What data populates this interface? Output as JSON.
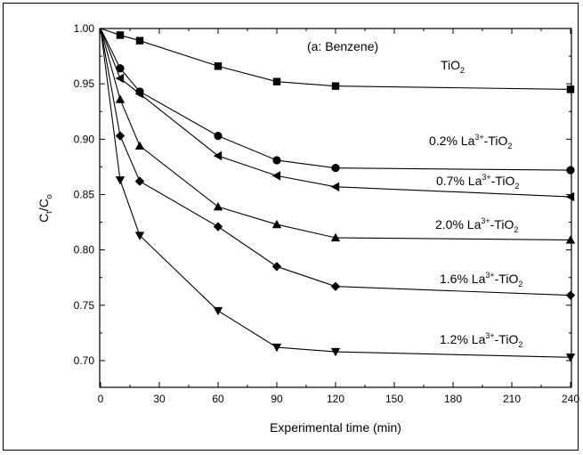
{
  "chart_data": {
    "type": "line",
    "title": "(a: Benzene)",
    "xlabel": "Experimental time (min)",
    "ylabel": {
      "main": "C",
      "sub1": "t",
      "mid": "/C",
      "sub2": "o"
    },
    "xlim": [
      0,
      240
    ],
    "ylim": [
      0.69,
      1.0
    ],
    "x_ticks": [
      0,
      30,
      60,
      90,
      120,
      150,
      180,
      210,
      240
    ],
    "y_ticks": [
      0.7,
      0.75,
      0.8,
      0.85,
      0.9,
      0.95,
      1.0
    ],
    "grid": false,
    "series": [
      {
        "name": "TiO2",
        "label_parts": {
          "pre": "TiO",
          "sup": "",
          "mid": "",
          "sub": "2"
        },
        "marker": "square",
        "x": [
          0,
          10,
          20,
          60,
          90,
          120,
          240
        ],
        "y": [
          1.0,
          0.994,
          0.989,
          0.966,
          0.952,
          0.948,
          0.945
        ]
      },
      {
        "name": "0.2% La3+-TiO2",
        "label_parts": {
          "pre": "0.2% La",
          "sup": "3+",
          "mid": "-TiO",
          "sub": "2"
        },
        "marker": "circle",
        "x": [
          0,
          10,
          20,
          60,
          90,
          120,
          240
        ],
        "y": [
          1.0,
          0.964,
          0.943,
          0.903,
          0.881,
          0.874,
          0.872
        ]
      },
      {
        "name": "0.7% La3+-TiO2",
        "label_parts": {
          "pre": "0.7% La",
          "sup": "3+",
          "mid": "-TiO",
          "sub": "2"
        },
        "marker": "triangle-left",
        "x": [
          0,
          10,
          20,
          60,
          90,
          120,
          240
        ],
        "y": [
          1.0,
          0.955,
          0.941,
          0.885,
          0.867,
          0.857,
          0.848
        ]
      },
      {
        "name": "2.0% La3+-TiO2",
        "label_parts": {
          "pre": "2.0% La",
          "sup": "3+",
          "mid": "-TiO",
          "sub": "2"
        },
        "marker": "triangle-up",
        "x": [
          0,
          10,
          20,
          60,
          90,
          120,
          240
        ],
        "y": [
          1.0,
          0.936,
          0.894,
          0.839,
          0.823,
          0.811,
          0.809
        ]
      },
      {
        "name": "1.6% La3+-TiO2",
        "label_parts": {
          "pre": "1.6% La",
          "sup": "3+",
          "mid": "-TiO",
          "sub": "2"
        },
        "marker": "diamond",
        "x": [
          0,
          10,
          20,
          60,
          90,
          120,
          240
        ],
        "y": [
          1.0,
          0.903,
          0.862,
          0.821,
          0.785,
          0.767,
          0.759
        ]
      },
      {
        "name": "1.2% La3+-TiO2",
        "label_parts": {
          "pre": "1.2% La",
          "sup": "3+",
          "mid": "-TiO",
          "sub": "2"
        },
        "marker": "triangle-down",
        "x": [
          0,
          10,
          20,
          60,
          90,
          120,
          240
        ],
        "y": [
          1.0,
          0.863,
          0.813,
          0.745,
          0.712,
          0.708,
          0.703
        ]
      }
    ]
  }
}
